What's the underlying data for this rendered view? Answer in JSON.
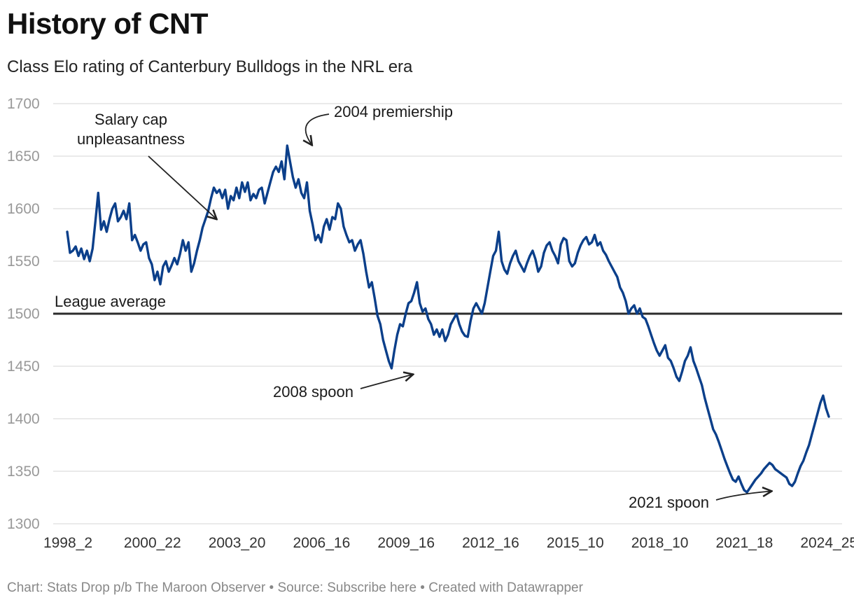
{
  "title": "History of CNT",
  "subtitle": "Class Elo rating of Canterbury Bulldogs in the NRL era",
  "footer": "Chart: Stats Drop p/b The Maroon Observer • Source: Subscribe here • Created with Datawrapper",
  "colors": {
    "line": "#0b3f8a",
    "reference": "#2b2b2b",
    "grid": "#dddddd",
    "tick": "#999999"
  },
  "chart_data": {
    "type": "line",
    "title": "History of CNT",
    "subtitle": "Class Elo rating of Canterbury Bulldogs in the NRL era",
    "xlabel": "",
    "ylabel": "",
    "ylim": [
      1300,
      1700
    ],
    "yticks": [
      1300,
      1350,
      1400,
      1450,
      1500,
      1550,
      1600,
      1650,
      1700
    ],
    "xticks": [
      "1998_2",
      "2000_22",
      "2003_20",
      "2006_16",
      "2009_16",
      "2012_16",
      "2015_10",
      "2018_10",
      "2021_18",
      "2024_25"
    ],
    "grid": true,
    "reference_line": {
      "value": 1500,
      "label": "League average"
    },
    "annotations": [
      {
        "text_lines": [
          "Salary cap",
          "unpleasantness"
        ],
        "x_tick_pos": 1.75,
        "value": 1588
      },
      {
        "text_lines": [
          "2004 premiership"
        ],
        "x_tick_pos": 2.88,
        "value": 1660
      },
      {
        "text_lines": [
          "2008 spoon"
        ],
        "x_tick_pos": 4.07,
        "value": 1446
      },
      {
        "text_lines": [
          "2021 spoon"
        ],
        "x_tick_pos": 8.31,
        "value": 1335
      }
    ],
    "series": [
      {
        "values": [
          1578,
          1558,
          1560,
          1564,
          1555,
          1562,
          1552,
          1560,
          1550,
          1562,
          1588,
          1615,
          1580,
          1588,
          1578,
          1590,
          1600,
          1605,
          1588,
          1592,
          1598,
          1590,
          1605,
          1570,
          1575,
          1568,
          1560,
          1566,
          1568,
          1553,
          1547,
          1532,
          1540,
          1528,
          1545,
          1550,
          1540,
          1546,
          1553,
          1547,
          1557,
          1570,
          1560,
          1568,
          1540,
          1548,
          1560,
          1570,
          1582,
          1590,
          1598,
          1610,
          1620,
          1615,
          1618,
          1610,
          1618,
          1600,
          1612,
          1608,
          1620,
          1610,
          1625,
          1616,
          1625,
          1608,
          1614,
          1610,
          1618,
          1620,
          1605,
          1615,
          1625,
          1635,
          1640,
          1635,
          1645,
          1628,
          1660,
          1645,
          1630,
          1620,
          1628,
          1615,
          1610,
          1625,
          1598,
          1585,
          1570,
          1575,
          1568,
          1583,
          1590,
          1580,
          1592,
          1590,
          1605,
          1600,
          1583,
          1575,
          1568,
          1570,
          1560,
          1566,
          1570,
          1557,
          1540,
          1525,
          1530,
          1515,
          1498,
          1490,
          1475,
          1465,
          1455,
          1448,
          1465,
          1480,
          1490,
          1488,
          1500,
          1510,
          1512,
          1520,
          1530,
          1510,
          1502,
          1505,
          1495,
          1490,
          1480,
          1485,
          1478,
          1485,
          1474,
          1480,
          1490,
          1495,
          1500,
          1490,
          1483,
          1479,
          1478,
          1493,
          1505,
          1510,
          1505,
          1500,
          1510,
          1525,
          1540,
          1555,
          1560,
          1578,
          1550,
          1542,
          1538,
          1548,
          1555,
          1560,
          1550,
          1545,
          1540,
          1548,
          1555,
          1560,
          1552,
          1540,
          1545,
          1558,
          1565,
          1568,
          1560,
          1555,
          1548,
          1566,
          1572,
          1570,
          1550,
          1545,
          1548,
          1558,
          1565,
          1570,
          1573,
          1566,
          1568,
          1575,
          1565,
          1568,
          1560,
          1556,
          1550,
          1545,
          1540,
          1535,
          1525,
          1520,
          1512,
          1500,
          1505,
          1508,
          1500,
          1505,
          1497,
          1495,
          1488,
          1480,
          1472,
          1465,
          1460,
          1465,
          1470,
          1458,
          1455,
          1448,
          1440,
          1436,
          1445,
          1455,
          1460,
          1468,
          1455,
          1448,
          1440,
          1432,
          1420,
          1410,
          1400,
          1390,
          1385,
          1378,
          1370,
          1362,
          1355,
          1348,
          1342,
          1340,
          1345,
          1338,
          1332,
          1330,
          1334,
          1338,
          1342,
          1345,
          1348,
          1352,
          1355,
          1358,
          1356,
          1352,
          1350,
          1348,
          1346,
          1344,
          1338,
          1336,
          1340,
          1348,
          1355,
          1360,
          1368,
          1375,
          1385,
          1395,
          1405,
          1415,
          1422,
          1410,
          1402
        ]
      }
    ]
  }
}
